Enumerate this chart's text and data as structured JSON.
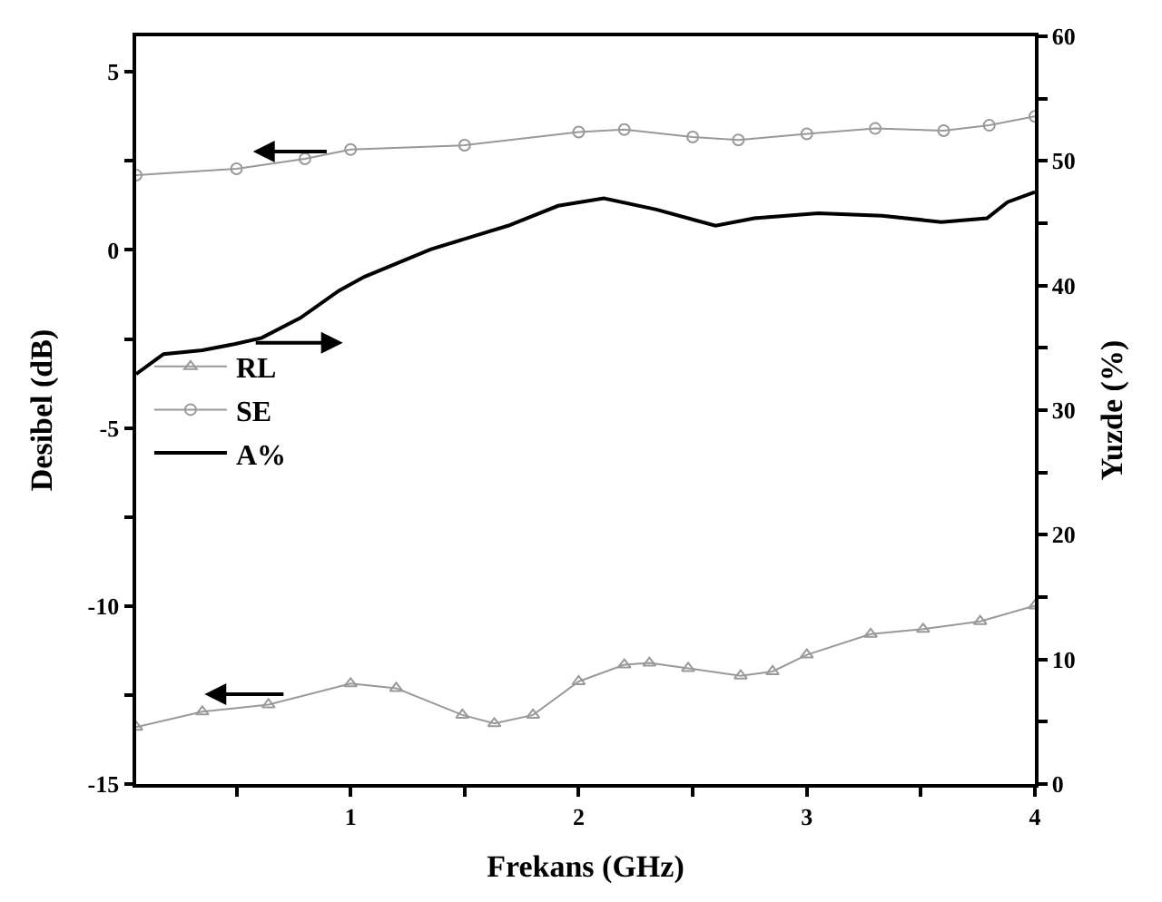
{
  "chart_data": {
    "type": "line",
    "xlabel": "Frekans (GHz)",
    "ylabel": "Desibel (dB)",
    "y2label": "Yuzde (%)",
    "xlim": [
      0.06,
      4
    ],
    "xticks": [
      {
        "value": 0.5,
        "label": null
      },
      1,
      {
        "value": 1.5,
        "label": null
      },
      2,
      {
        "value": 2.5,
        "label": null
      },
      3,
      {
        "value": 3.5,
        "label": null
      },
      4
    ],
    "ylim": [
      -15,
      6
    ],
    "yticks": [
      -15,
      {
        "value": -12.5,
        "label": null
      },
      -10,
      {
        "value": -7.5,
        "label": null
      },
      -5,
      {
        "value": -2.5,
        "label": null
      },
      0,
      {
        "value": 2.5,
        "label": null
      },
      5
    ],
    "y2lim": [
      0,
      60
    ],
    "y2ticks": [
      0,
      {
        "value": 5,
        "label": null
      },
      10,
      {
        "value": 15,
        "label": null
      },
      20,
      {
        "value": 25,
        "label": null
      },
      30,
      {
        "value": 35,
        "label": null
      },
      40,
      {
        "value": 45,
        "label": null
      },
      50,
      {
        "value": 55,
        "label": null
      },
      60
    ],
    "legend": "left",
    "series": [
      {
        "name": "RL",
        "color": "#999999",
        "marker": "triangle",
        "x": [
          0.06,
          0.35,
          0.64,
          1.0,
          1.2,
          1.49,
          1.63,
          1.8,
          2.0,
          2.2,
          2.31,
          2.48,
          2.71,
          2.85,
          3.0,
          3.28,
          3.51,
          3.76,
          4.0
        ],
        "values": [
          -13.4,
          -12.97,
          -12.77,
          -12.18,
          -12.31,
          -13.06,
          -13.3,
          -13.06,
          -12.12,
          -11.65,
          -11.6,
          -11.75,
          -11.96,
          -11.84,
          -11.37,
          -10.79,
          -10.65,
          -10.43,
          -9.99
        ]
      },
      {
        "name": "SE",
        "color": "#999999",
        "marker": "circle",
        "x": [
          0.06,
          0.5,
          0.8,
          1.0,
          1.5,
          2.0,
          2.2,
          2.5,
          2.7,
          3.0,
          3.3,
          3.6,
          3.8,
          4.0
        ],
        "values": [
          2.1,
          2.28,
          2.56,
          2.82,
          2.94,
          3.31,
          3.38,
          3.17,
          3.09,
          3.26,
          3.41,
          3.35,
          3.5,
          3.75
        ]
      },
      {
        "name": "A%",
        "color": "#000000",
        "marker": "none",
        "axis": "y2",
        "x": [
          0.06,
          0.18,
          0.35,
          0.49,
          0.61,
          0.78,
          0.95,
          1.06,
          1.35,
          1.69,
          1.91,
          2.11,
          2.34,
          2.48,
          2.6,
          2.77,
          3.05,
          3.33,
          3.59,
          3.79,
          3.88,
          4.0
        ],
        "values": [
          32.9,
          34.5,
          34.8,
          35.3,
          35.8,
          37.4,
          39.6,
          40.7,
          42.9,
          44.8,
          46.4,
          47.0,
          46.1,
          45.4,
          44.8,
          45.4,
          45.8,
          45.6,
          45.1,
          45.4,
          46.7,
          47.5
        ]
      }
    ]
  }
}
